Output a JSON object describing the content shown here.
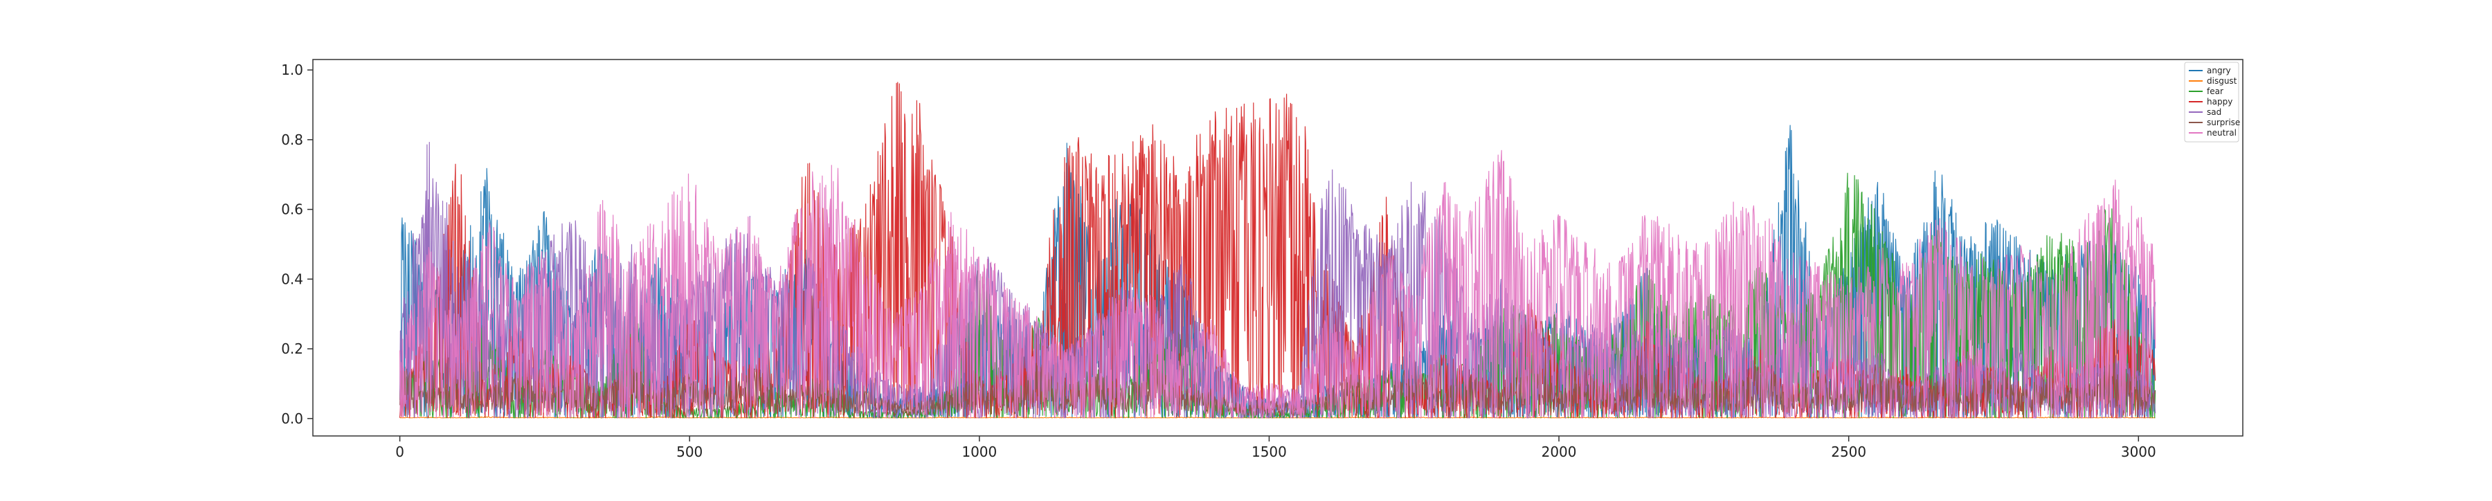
{
  "chart_data": {
    "type": "line",
    "title": "",
    "xlabel": "",
    "ylabel": "",
    "xlim": [
      -150,
      3180
    ],
    "ylim": [
      -0.05,
      1.03
    ],
    "xticks": [
      0,
      500,
      1000,
      1500,
      2000,
      2500,
      3000
    ],
    "yticks": [
      0.0,
      0.2,
      0.4,
      0.6,
      0.8,
      1.0
    ],
    "xtick_labels": [
      "0",
      "500",
      "1000",
      "1500",
      "2000",
      "2500",
      "3000"
    ],
    "ytick_labels": [
      "0.0",
      "0.2",
      "0.4",
      "0.6",
      "0.8",
      "1.0"
    ],
    "grid": false,
    "legend_position": "top-right",
    "n_points": 3030,
    "series": [
      {
        "name": "angry",
        "color": "#1f77b4",
        "x": [
          0,
          50,
          100,
          150,
          200,
          250,
          300,
          350,
          400,
          450,
          500,
          550,
          600,
          650,
          700,
          750,
          800,
          850,
          900,
          950,
          1000,
          1050,
          1100,
          1150,
          1200,
          1250,
          1300,
          1350,
          1400,
          1450,
          1500,
          1550,
          1600,
          1650,
          1700,
          1750,
          1800,
          1850,
          1900,
          1950,
          2000,
          2050,
          2100,
          2150,
          2200,
          2250,
          2300,
          2350,
          2400,
          2450,
          2500,
          2550,
          2600,
          2650,
          2700,
          2750,
          2800,
          2850,
          2900,
          2950,
          3030
        ],
        "y": [
          0.69,
          0.35,
          0.45,
          0.72,
          0.4,
          0.6,
          0.3,
          0.55,
          0.25,
          0.5,
          0.35,
          0.3,
          0.45,
          0.4,
          0.5,
          0.2,
          0.15,
          0.05,
          0.08,
          0.1,
          0.35,
          0.3,
          0.25,
          0.84,
          0.5,
          0.7,
          0.55,
          0.4,
          0.2,
          0.1,
          0.05,
          0.05,
          0.1,
          0.08,
          0.15,
          0.2,
          0.3,
          0.25,
          0.3,
          0.2,
          0.35,
          0.25,
          0.3,
          0.45,
          0.2,
          0.35,
          0.2,
          0.3,
          0.88,
          0.3,
          0.5,
          0.72,
          0.4,
          0.75,
          0.55,
          0.6,
          0.5,
          0.45,
          0.5,
          0.55,
          0.35
        ]
      },
      {
        "name": "disgust",
        "color": "#ff7f0e",
        "x": [
          0,
          50,
          100,
          150,
          200,
          250,
          300,
          350,
          400,
          450,
          500,
          550,
          600,
          650,
          700,
          750,
          800,
          850,
          900,
          950,
          1000,
          1050,
          1100,
          1150,
          1200,
          1250,
          1300,
          1350,
          1400,
          1450,
          1500,
          1550,
          1600,
          1650,
          1700,
          1750,
          1800,
          1850,
          1900,
          1950,
          2000,
          2050,
          2100,
          2150,
          2200,
          2250,
          2300,
          2350,
          2400,
          2450,
          2500,
          2550,
          2600,
          2650,
          2700,
          2750,
          2800,
          2850,
          2900,
          2950,
          3030
        ],
        "y": [
          0.002,
          0.003,
          0.002,
          0.004,
          0.002,
          0.003,
          0.002,
          0.003,
          0.002,
          0.004,
          0.002,
          0.003,
          0.002,
          0.003,
          0.002,
          0.003,
          0.002,
          0.002,
          0.002,
          0.003,
          0.002,
          0.003,
          0.002,
          0.003,
          0.002,
          0.003,
          0.002,
          0.003,
          0.002,
          0.002,
          0.002,
          0.002,
          0.002,
          0.003,
          0.002,
          0.003,
          0.002,
          0.003,
          0.002,
          0.003,
          0.002,
          0.003,
          0.002,
          0.003,
          0.002,
          0.003,
          0.002,
          0.003,
          0.002,
          0.003,
          0.002,
          0.003,
          0.002,
          0.003,
          0.002,
          0.003,
          0.002,
          0.003,
          0.002,
          0.003,
          0.002
        ]
      },
      {
        "name": "fear",
        "color": "#2ca02c",
        "x": [
          0,
          50,
          100,
          150,
          200,
          250,
          300,
          350,
          400,
          450,
          500,
          550,
          600,
          650,
          700,
          750,
          800,
          850,
          900,
          950,
          1000,
          1050,
          1100,
          1150,
          1200,
          1250,
          1300,
          1350,
          1400,
          1450,
          1500,
          1550,
          1600,
          1650,
          1700,
          1750,
          1800,
          1850,
          1900,
          1950,
          2000,
          2050,
          2100,
          2150,
          2200,
          2250,
          2300,
          2350,
          2400,
          2450,
          2500,
          2550,
          2600,
          2650,
          2700,
          2750,
          2800,
          2850,
          2900,
          2950,
          3030
        ],
        "y": [
          0.1,
          0.2,
          0.15,
          0.3,
          0.1,
          0.2,
          0.15,
          0.1,
          0.35,
          0.05,
          0.03,
          0.03,
          0.05,
          0.1,
          0.05,
          0.1,
          0.02,
          0.02,
          0.02,
          0.1,
          0.45,
          0.2,
          0.3,
          0.1,
          0.15,
          0.1,
          0.2,
          0.3,
          0.05,
          0.03,
          0.02,
          0.02,
          0.05,
          0.1,
          0.15,
          0.1,
          0.2,
          0.15,
          0.35,
          0.3,
          0.3,
          0.2,
          0.25,
          0.45,
          0.3,
          0.4,
          0.35,
          0.45,
          0.3,
          0.4,
          0.73,
          0.6,
          0.35,
          0.55,
          0.45,
          0.5,
          0.4,
          0.55,
          0.5,
          0.65,
          0.1
        ]
      },
      {
        "name": "happy",
        "color": "#d62728",
        "x": [
          0,
          50,
          100,
          150,
          200,
          250,
          300,
          350,
          400,
          450,
          500,
          550,
          600,
          650,
          700,
          750,
          800,
          850,
          900,
          950,
          1000,
          1050,
          1100,
          1150,
          1200,
          1250,
          1300,
          1350,
          1400,
          1450,
          1500,
          1550,
          1600,
          1650,
          1700,
          1750,
          1800,
          1850,
          1900,
          1950,
          2000,
          2050,
          2100,
          2150,
          2200,
          2250,
          2300,
          2350,
          2400,
          2450,
          2500,
          2550,
          2600,
          2650,
          2700,
          2750,
          2800,
          2850,
          2900,
          2950,
          3030
        ],
        "y": [
          0.05,
          0.3,
          0.81,
          0.1,
          0.3,
          0.15,
          0.2,
          0.05,
          0.25,
          0.1,
          0.3,
          0.2,
          0.15,
          0.25,
          0.78,
          0.5,
          0.6,
          0.98,
          0.9,
          0.55,
          0.1,
          0.15,
          0.3,
          0.85,
          0.75,
          0.8,
          0.85,
          0.75,
          0.9,
          0.9,
          0.92,
          0.96,
          0.45,
          0.2,
          0.68,
          0.1,
          0.2,
          0.15,
          0.1,
          0.35,
          0.2,
          0.15,
          0.1,
          0.3,
          0.2,
          0.1,
          0.15,
          0.2,
          0.1,
          0.15,
          0.2,
          0.1,
          0.15,
          0.1,
          0.2,
          0.15,
          0.1,
          0.2,
          0.15,
          0.3,
          0.2
        ]
      },
      {
        "name": "sad",
        "color": "#9467bd",
        "x": [
          0,
          50,
          100,
          150,
          200,
          250,
          300,
          350,
          400,
          450,
          500,
          550,
          600,
          650,
          700,
          750,
          800,
          850,
          900,
          950,
          1000,
          1050,
          1100,
          1150,
          1200,
          1250,
          1300,
          1350,
          1400,
          1450,
          1500,
          1550,
          1600,
          1650,
          1700,
          1750,
          1800,
          1850,
          1900,
          1950,
          2000,
          2050,
          2100,
          2150,
          2200,
          2250,
          2300,
          2350,
          2400,
          2450,
          2500,
          2550,
          2600,
          2650,
          2700,
          2750,
          2800,
          2850,
          2900,
          2950,
          3030
        ],
        "y": [
          0.3,
          0.83,
          0.5,
          0.4,
          0.3,
          0.5,
          0.6,
          0.4,
          0.5,
          0.3,
          0.4,
          0.5,
          0.6,
          0.4,
          0.5,
          0.3,
          0.2,
          0.1,
          0.1,
          0.3,
          0.5,
          0.4,
          0.3,
          0.2,
          0.3,
          0.4,
          0.3,
          0.5,
          0.2,
          0.1,
          0.05,
          0.1,
          0.77,
          0.6,
          0.5,
          0.7,
          0.6,
          0.3,
          0.4,
          0.3,
          0.2,
          0.3,
          0.2,
          0.3,
          0.25,
          0.2,
          0.3,
          0.15,
          0.3,
          0.2,
          0.15,
          0.2,
          0.1,
          0.15,
          0.2,
          0.15,
          0.2,
          0.1,
          0.15,
          0.2,
          0.1
        ]
      },
      {
        "name": "surprise",
        "color": "#8c564b",
        "x": [
          0,
          50,
          100,
          150,
          200,
          250,
          300,
          350,
          400,
          450,
          500,
          550,
          600,
          650,
          700,
          750,
          800,
          850,
          900,
          950,
          1000,
          1050,
          1100,
          1150,
          1200,
          1250,
          1300,
          1350,
          1400,
          1450,
          1500,
          1550,
          1600,
          1650,
          1700,
          1750,
          1800,
          1850,
          1900,
          1950,
          2000,
          2050,
          2100,
          2150,
          2200,
          2250,
          2300,
          2350,
          2400,
          2450,
          2500,
          2550,
          2600,
          2650,
          2700,
          2750,
          2800,
          2850,
          2900,
          2950,
          3030
        ],
        "y": [
          0.1,
          0.05,
          0.08,
          0.05,
          0.1,
          0.05,
          0.08,
          0.05,
          0.1,
          0.05,
          0.08,
          0.05,
          0.1,
          0.05,
          0.08,
          0.05,
          0.05,
          0.03,
          0.03,
          0.05,
          0.08,
          0.05,
          0.1,
          0.05,
          0.08,
          0.05,
          0.1,
          0.05,
          0.05,
          0.03,
          0.03,
          0.03,
          0.05,
          0.08,
          0.05,
          0.1,
          0.05,
          0.08,
          0.05,
          0.1,
          0.05,
          0.08,
          0.05,
          0.1,
          0.05,
          0.08,
          0.05,
          0.1,
          0.05,
          0.08,
          0.05,
          0.1,
          0.05,
          0.08,
          0.05,
          0.1,
          0.05,
          0.08,
          0.05,
          0.1,
          0.05
        ]
      },
      {
        "name": "neutral",
        "color": "#e377c2",
        "x": [
          0,
          50,
          100,
          150,
          200,
          250,
          300,
          350,
          400,
          450,
          500,
          550,
          600,
          650,
          700,
          750,
          800,
          850,
          900,
          950,
          1000,
          1050,
          1100,
          1150,
          1200,
          1250,
          1300,
          1350,
          1400,
          1450,
          1500,
          1550,
          1600,
          1650,
          1700,
          1750,
          1800,
          1850,
          1900,
          1950,
          2000,
          2050,
          2100,
          2150,
          2200,
          2250,
          2300,
          2350,
          2400,
          2450,
          2500,
          2550,
          2600,
          2650,
          2700,
          2750,
          2800,
          2850,
          2900,
          2950,
          3030
        ],
        "y": [
          0.2,
          0.5,
          0.3,
          0.6,
          0.4,
          0.5,
          0.3,
          0.65,
          0.5,
          0.6,
          0.72,
          0.5,
          0.6,
          0.4,
          0.7,
          0.75,
          0.5,
          0.3,
          0.4,
          0.6,
          0.5,
          0.4,
          0.3,
          0.2,
          0.3,
          0.4,
          0.35,
          0.2,
          0.3,
          0.1,
          0.1,
          0.1,
          0.3,
          0.2,
          0.5,
          0.4,
          0.7,
          0.6,
          0.8,
          0.5,
          0.6,
          0.5,
          0.45,
          0.6,
          0.55,
          0.5,
          0.65,
          0.6,
          0.5,
          0.45,
          0.4,
          0.5,
          0.45,
          0.6,
          0.5,
          0.45,
          0.5,
          0.4,
          0.55,
          0.75,
          0.5
        ]
      }
    ]
  }
}
